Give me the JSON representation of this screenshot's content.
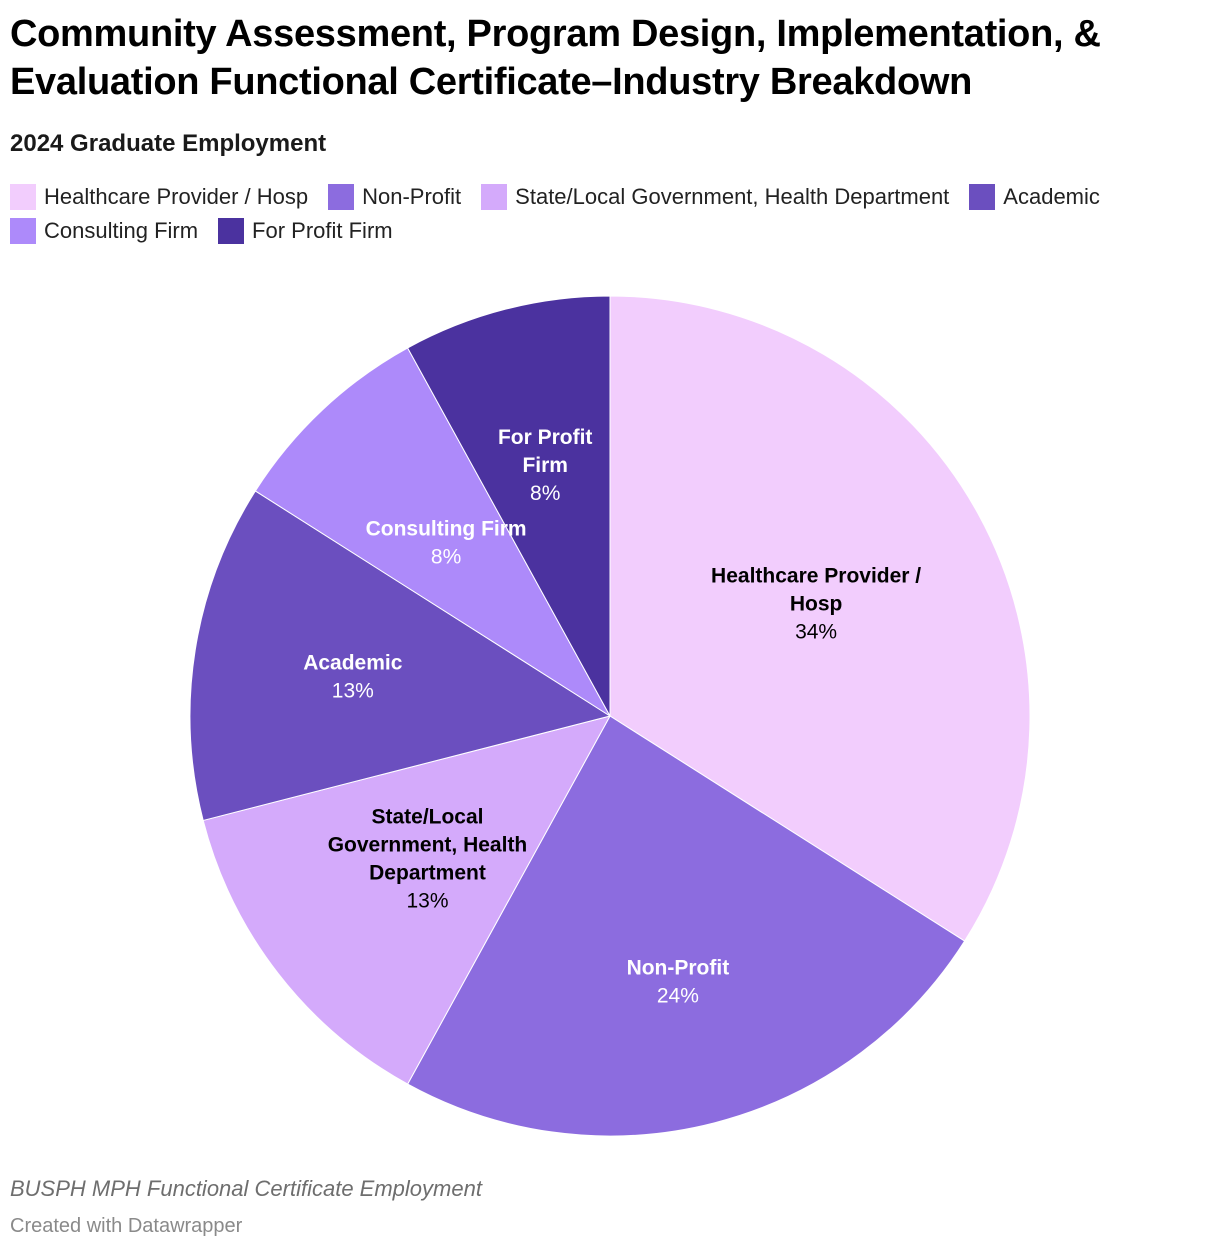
{
  "header": {
    "title": "Community Assessment, Program Design, Implementation, & Evaluation Functional Certificate–Industry Breakdown",
    "subtitle": "2024 Graduate Employment"
  },
  "footer": {
    "note": "BUSPH MPH Functional Certificate Employment",
    "credit": "Created with Datawrapper"
  },
  "chart_data": {
    "type": "pie",
    "title": "Community Assessment, Program Design, Implementation, & Evaluation Functional Certificate–Industry Breakdown",
    "subtitle": "2024 Graduate Employment",
    "legend_placement": "top",
    "slices": [
      {
        "name": "Healthcare Provider / Hosp",
        "value": 34,
        "label": "34%",
        "label_lines": [
          "Healthcare Provider /",
          "Hosp"
        ],
        "color": "#f2cdfd",
        "text_color": "#000000"
      },
      {
        "name": "Non-Profit",
        "value": 24,
        "label": "24%",
        "label_lines": [
          "Non-Profit"
        ],
        "color": "#8c6cdf",
        "text_color": "#ffffff"
      },
      {
        "name": "State/Local Government, Health Department",
        "value": 13,
        "label": "13%",
        "label_lines": [
          "State/Local",
          "Government, Health",
          "Department"
        ],
        "color": "#d4aafb",
        "text_color": "#000000"
      },
      {
        "name": "Academic",
        "value": 13,
        "label": "13%",
        "label_lines": [
          "Academic"
        ],
        "color": "#6b4fbf",
        "text_color": "#ffffff"
      },
      {
        "name": "Consulting Firm",
        "value": 8,
        "label": "8%",
        "label_lines": [
          "Consulting Firm"
        ],
        "color": "#ad8afa",
        "text_color": "#ffffff"
      },
      {
        "name": "For Profit Firm",
        "value": 8,
        "label": "8%",
        "label_lines": [
          "For Profit",
          "Firm"
        ],
        "color": "#4b329f",
        "text_color": "#ffffff"
      }
    ]
  }
}
